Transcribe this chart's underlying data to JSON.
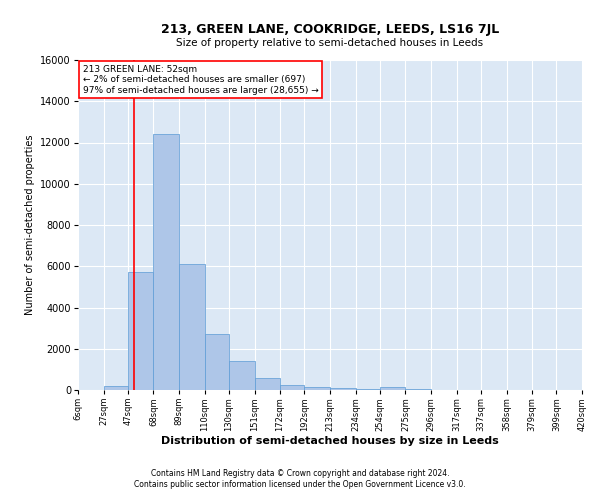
{
  "title": "213, GREEN LANE, COOKRIDGE, LEEDS, LS16 7JL",
  "subtitle": "Size of property relative to semi-detached houses in Leeds",
  "xlabel": "Distribution of semi-detached houses by size in Leeds",
  "ylabel": "Number of semi-detached properties",
  "footer1": "Contains HM Land Registry data © Crown copyright and database right 2024.",
  "footer2": "Contains public sector information licensed under the Open Government Licence v3.0.",
  "annotation_line1": "213 GREEN LANE: 52sqm",
  "annotation_line2": "← 2% of semi-detached houses are smaller (697)",
  "annotation_line3": "97% of semi-detached houses are larger (28,655) →",
  "bar_color": "#aec6e8",
  "bar_edge_color": "#5b9bd5",
  "red_line_x": 52,
  "background_color": "#dce8f5",
  "bin_edges": [
    6,
    27,
    47,
    68,
    89,
    110,
    130,
    151,
    172,
    192,
    213,
    234,
    254,
    275,
    296,
    317,
    337,
    358,
    379,
    399,
    420
  ],
  "bin_heights": [
    0,
    200,
    5700,
    12400,
    6100,
    2700,
    1400,
    600,
    250,
    150,
    100,
    50,
    150,
    50,
    10,
    5,
    2,
    1,
    0,
    0
  ],
  "ylim": [
    0,
    16000
  ],
  "yticks": [
    0,
    2000,
    4000,
    6000,
    8000,
    10000,
    12000,
    14000,
    16000
  ],
  "xtick_labels": [
    "6sqm",
    "27sqm",
    "47sqm",
    "68sqm",
    "89sqm",
    "110sqm",
    "130sqm",
    "151sqm",
    "172sqm",
    "192sqm",
    "213sqm",
    "234sqm",
    "254sqm",
    "275sqm",
    "296sqm",
    "317sqm",
    "337sqm",
    "358sqm",
    "379sqm",
    "399sqm",
    "420sqm"
  ]
}
